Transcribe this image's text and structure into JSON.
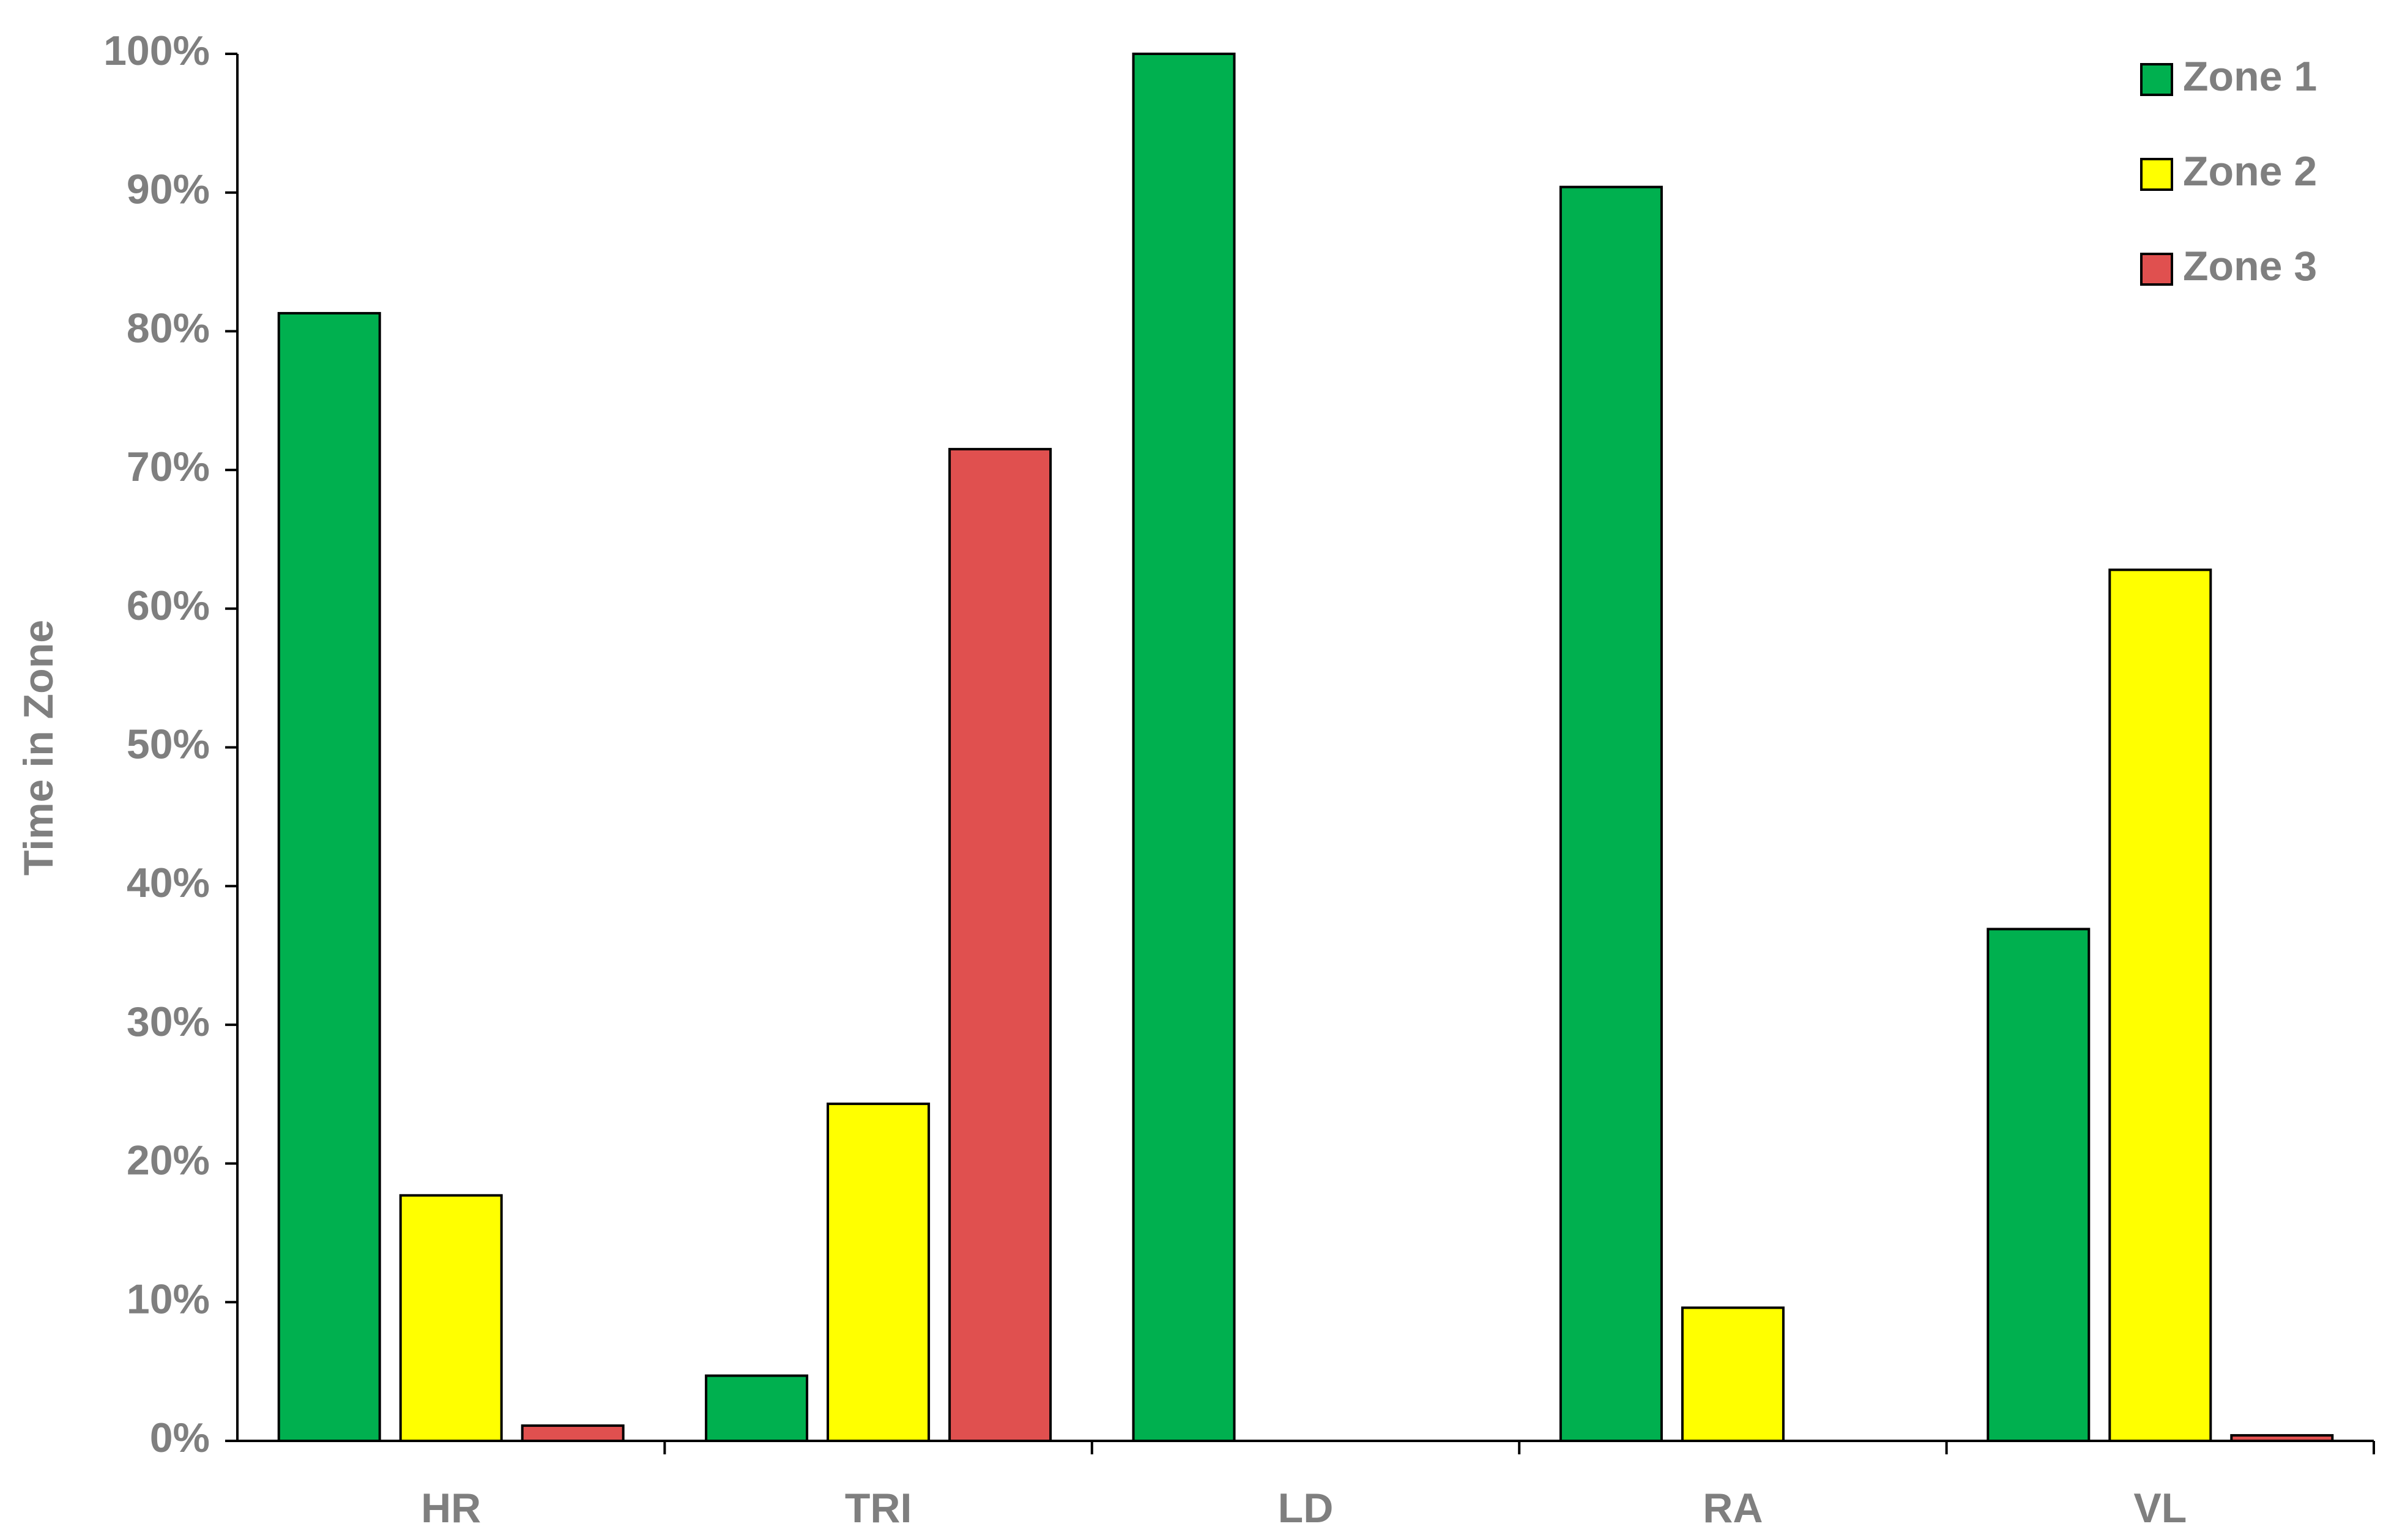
{
  "chart_data": {
    "type": "bar",
    "y_label": "Time in Zone",
    "categories": [
      "HR",
      "TRI",
      "LD",
      "RA",
      "VL"
    ],
    "series": [
      {
        "name": "Zone 1",
        "color": "#00b04f",
        "values": [
          81.3,
          4.7,
          100,
          90.4,
          36.9
        ]
      },
      {
        "name": "Zone 2",
        "color": "#ffff00",
        "values": [
          17.7,
          24.3,
          0,
          9.6,
          62.8
        ]
      },
      {
        "name": "Zone 3",
        "color": "#e0504f",
        "values": [
          1.1,
          71.5,
          0,
          0,
          0.4
        ]
      }
    ],
    "ylim": [
      0,
      100
    ],
    "yticks": [
      {
        "value": 0,
        "label": "0%"
      },
      {
        "value": 10,
        "label": "10%"
      },
      {
        "value": 20,
        "label": "20%"
      },
      {
        "value": 30,
        "label": "30%"
      },
      {
        "value": 40,
        "label": "40%"
      },
      {
        "value": 50,
        "label": "50%"
      },
      {
        "value": 60,
        "label": "60%"
      },
      {
        "value": 70,
        "label": "70%"
      },
      {
        "value": 80,
        "label": "80%"
      },
      {
        "value": 90,
        "label": "90%"
      },
      {
        "value": 100,
        "label": "100%"
      }
    ],
    "grid": false,
    "legend": "upper right"
  }
}
